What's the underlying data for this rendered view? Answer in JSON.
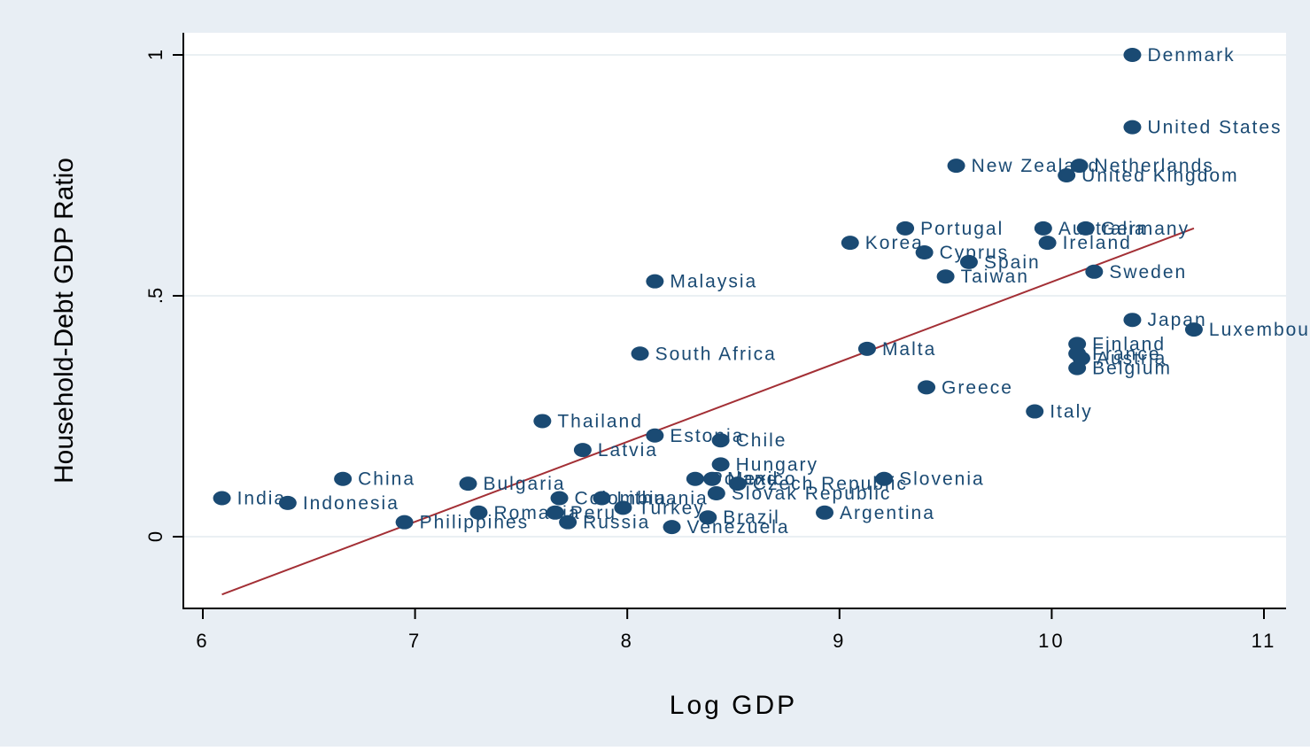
{
  "chart_data": {
    "type": "scatter",
    "title": "",
    "xlabel": "Log GDP",
    "ylabel": "Household-Debt GDP Ratio",
    "xlim": [
      6,
      11
    ],
    "ylim": [
      -0.15,
      1.05
    ],
    "xticks": [
      6,
      7,
      8,
      9,
      10,
      11
    ],
    "xtick_labels": [
      "6",
      "7",
      "8",
      "9",
      "10",
      "11"
    ],
    "yticks": [
      0,
      0.5,
      1
    ],
    "ytick_labels": [
      "0",
      ".5",
      "1"
    ],
    "grid": "horizontal",
    "legend": "none",
    "colors": {
      "outer_background": "#e8eef4",
      "plot_background": "#ffffff",
      "marker": "#1a4a73",
      "label": "#1a4a73",
      "fit_line": "#a32f35",
      "grid": "#e4ecef"
    },
    "series": [
      {
        "type": "scatter",
        "points": [
          {
            "label": "Denmark",
            "x": 10.38,
            "y": 1.0
          },
          {
            "label": "United States",
            "x": 10.38,
            "y": 0.85
          },
          {
            "label": "New Zealand",
            "x": 9.55,
            "y": 0.77
          },
          {
            "label": "Netherlands",
            "x": 10.13,
            "y": 0.77
          },
          {
            "label": "United Kingdom",
            "x": 10.07,
            "y": 0.75
          },
          {
            "label": "Portugal",
            "x": 9.31,
            "y": 0.64
          },
          {
            "label": "Australia",
            "x": 9.96,
            "y": 0.64
          },
          {
            "label": "Germany",
            "x": 10.16,
            "y": 0.64
          },
          {
            "label": "Korea",
            "x": 9.05,
            "y": 0.61
          },
          {
            "label": "Ireland",
            "x": 9.98,
            "y": 0.61
          },
          {
            "label": "Cyprus",
            "x": 9.4,
            "y": 0.59
          },
          {
            "label": "Spain",
            "x": 9.61,
            "y": 0.57
          },
          {
            "label": "Taiwan",
            "x": 9.5,
            "y": 0.54
          },
          {
            "label": "Sweden",
            "x": 10.2,
            "y": 0.55
          },
          {
            "label": "Malaysia",
            "x": 8.13,
            "y": 0.53
          },
          {
            "label": "Japan",
            "x": 10.38,
            "y": 0.45
          },
          {
            "label": "Luxembourg",
            "x": 10.67,
            "y": 0.43
          },
          {
            "label": "Finland",
            "x": 10.12,
            "y": 0.4
          },
          {
            "label": "France",
            "x": 10.12,
            "y": 0.38
          },
          {
            "label": "Austria",
            "x": 10.14,
            "y": 0.37
          },
          {
            "label": "Belgium",
            "x": 10.12,
            "y": 0.35
          },
          {
            "label": "South Africa",
            "x": 8.06,
            "y": 0.38
          },
          {
            "label": "Malta",
            "x": 9.13,
            "y": 0.39
          },
          {
            "label": "Greece",
            "x": 9.41,
            "y": 0.31
          },
          {
            "label": "Italy",
            "x": 9.92,
            "y": 0.26
          },
          {
            "label": "Thailand",
            "x": 7.6,
            "y": 0.24
          },
          {
            "label": "Estonia",
            "x": 8.13,
            "y": 0.21
          },
          {
            "label": "Chile",
            "x": 8.44,
            "y": 0.2
          },
          {
            "label": "Latvia",
            "x": 7.79,
            "y": 0.18
          },
          {
            "label": "Hungary",
            "x": 8.44,
            "y": 0.15
          },
          {
            "label": "China",
            "x": 6.66,
            "y": 0.12
          },
          {
            "label": "Bulgaria",
            "x": 7.25,
            "y": 0.11
          },
          {
            "label": "Poland",
            "x": 8.32,
            "y": 0.12
          },
          {
            "label": "Mexico",
            "x": 8.4,
            "y": 0.12
          },
          {
            "label": "Czech Republic",
            "x": 8.52,
            "y": 0.11
          },
          {
            "label": "Slovenia",
            "x": 9.21,
            "y": 0.12
          },
          {
            "label": "Slovak Republic",
            "x": 8.42,
            "y": 0.09
          },
          {
            "label": "India",
            "x": 6.09,
            "y": 0.08
          },
          {
            "label": "Indonesia",
            "x": 6.4,
            "y": 0.07
          },
          {
            "label": "Colombia",
            "x": 7.68,
            "y": 0.08
          },
          {
            "label": "Lithuania",
            "x": 7.88,
            "y": 0.08
          },
          {
            "label": "Turkey",
            "x": 7.98,
            "y": 0.06
          },
          {
            "label": "Romania",
            "x": 7.3,
            "y": 0.05
          },
          {
            "label": "Peru",
            "x": 7.66,
            "y": 0.05
          },
          {
            "label": "Philippines",
            "x": 6.95,
            "y": 0.03
          },
          {
            "label": "Russia",
            "x": 7.72,
            "y": 0.03
          },
          {
            "label": "Brazil",
            "x": 8.38,
            "y": 0.04
          },
          {
            "label": "Argentina",
            "x": 8.93,
            "y": 0.05
          },
          {
            "label": "Venezuela",
            "x": 8.21,
            "y": 0.02
          }
        ]
      },
      {
        "type": "line",
        "x": [
          6.09,
          10.67
        ],
        "y": [
          -0.12,
          0.64
        ]
      }
    ]
  }
}
